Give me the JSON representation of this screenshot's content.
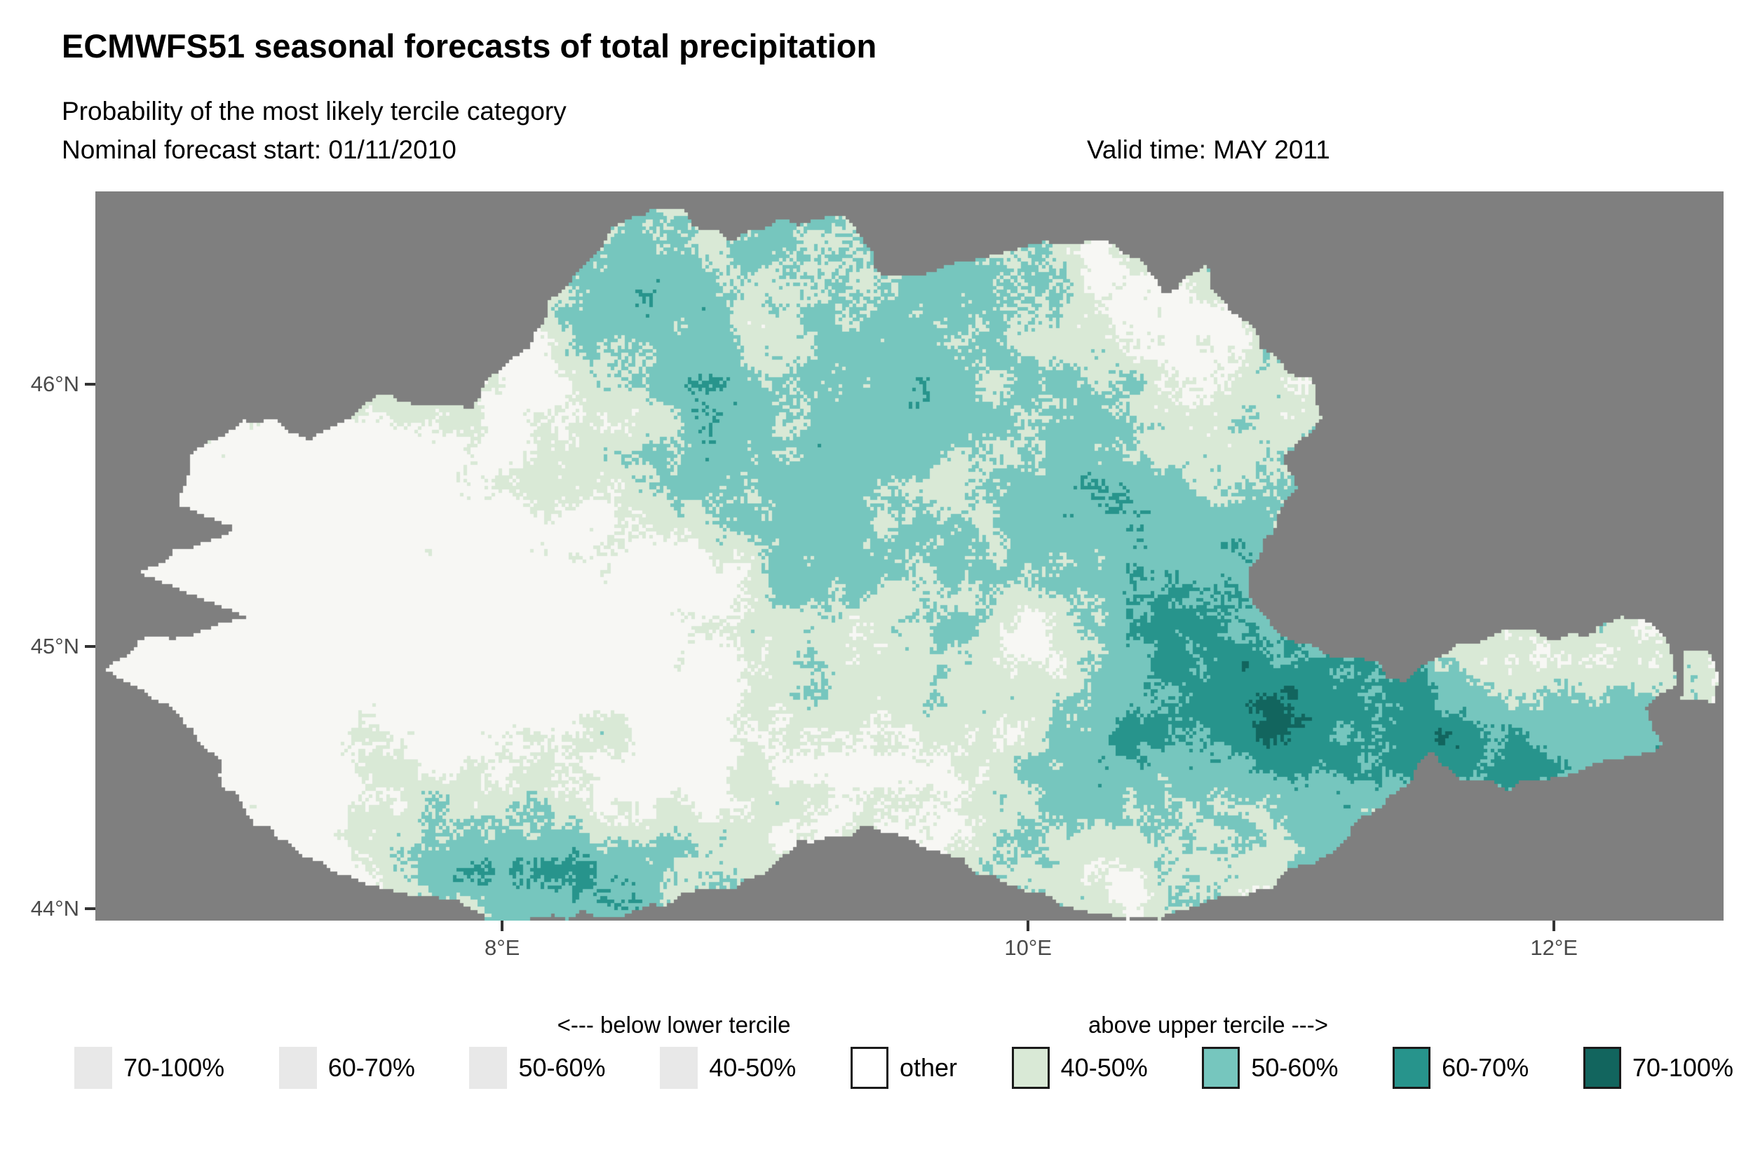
{
  "header": {
    "title": "ECMWFS51 seasonal forecasts of total precipitation",
    "subtitle": "Probability of the most likely tercile category",
    "forecast_start": "Nominal forecast start: 01/11/2010",
    "valid_time": "Valid time: MAY 2011"
  },
  "legend": {
    "below_header": "<--- below lower tercile",
    "above_header": "above upper tercile --->",
    "items": [
      {
        "label": "70-100%",
        "color": "#e8e8e8",
        "bordered": false,
        "group": "below"
      },
      {
        "label": "60-70%",
        "color": "#e8e8e8",
        "bordered": false,
        "group": "below"
      },
      {
        "label": "50-60%",
        "color": "#e8e8e8",
        "bordered": false,
        "group": "below"
      },
      {
        "label": "40-50%",
        "color": "#e8e8e8",
        "bordered": false,
        "group": "below"
      },
      {
        "label": "other",
        "color": "#ffffff",
        "bordered": true,
        "group": "other"
      },
      {
        "label": "40-50%",
        "color": "#d9e9d6",
        "bordered": true,
        "group": "above"
      },
      {
        "label": "50-60%",
        "color": "#76c6be",
        "bordered": true,
        "group": "above"
      },
      {
        "label": "60-70%",
        "color": "#27948c",
        "bordered": true,
        "group": "above"
      },
      {
        "label": "70-100%",
        "color": "#12655e",
        "bordered": true,
        "group": "above"
      }
    ]
  },
  "map_style": {
    "background": "#7f7f7f",
    "axis_text_color": "#4a4a4a",
    "tick_mark_color": "#333333"
  },
  "chart_data": {
    "type": "heatmap",
    "subtype": "categorical raster map of most-likely-tercile probability",
    "lon_range": [
      6.453,
      12.645
    ],
    "lat_range": [
      43.955,
      46.735
    ],
    "x_ticks": [
      {
        "label": "8°E",
        "value": 8
      },
      {
        "label": "10°E",
        "value": 10
      },
      {
        "label": "12°E",
        "value": 12
      }
    ],
    "y_ticks": [
      {
        "label": "46°N",
        "value": 46
      },
      {
        "label": "45°N",
        "value": 45
      },
      {
        "label": "44°N",
        "value": 44
      }
    ],
    "categories": [
      {
        "label": "other",
        "color": "#f7f7f4"
      },
      {
        "label": "40-50%",
        "color": "#d9e9d6"
      },
      {
        "label": "50-60%",
        "color": "#76c6be"
      },
      {
        "label": "60-70%",
        "color": "#27948c"
      },
      {
        "label": "70-100%",
        "color": "#12655e"
      }
    ],
    "region_outline": [
      [
        6.5,
        44.9
      ],
      [
        6.62,
        45.02
      ],
      [
        7.05,
        45.1
      ],
      [
        6.85,
        45.18
      ],
      [
        6.62,
        45.28
      ],
      [
        6.95,
        45.42
      ],
      [
        6.78,
        45.55
      ],
      [
        6.82,
        45.72
      ],
      [
        7.0,
        45.88
      ],
      [
        7.28,
        45.8
      ],
      [
        7.55,
        45.95
      ],
      [
        7.88,
        45.9
      ],
      [
        8.05,
        46.1
      ],
      [
        8.22,
        46.32
      ],
      [
        8.42,
        46.6
      ],
      [
        8.65,
        46.67
      ],
      [
        8.88,
        46.55
      ],
      [
        9.05,
        46.63
      ],
      [
        9.3,
        46.62
      ],
      [
        9.48,
        46.42
      ],
      [
        9.68,
        46.45
      ],
      [
        9.92,
        46.52
      ],
      [
        10.12,
        46.57
      ],
      [
        10.35,
        46.53
      ],
      [
        10.5,
        46.36
      ],
      [
        10.65,
        46.45
      ],
      [
        10.8,
        46.28
      ],
      [
        10.88,
        46.15
      ],
      [
        11.08,
        46.02
      ],
      [
        11.12,
        45.86
      ],
      [
        10.95,
        45.72
      ],
      [
        11.02,
        45.58
      ],
      [
        10.88,
        45.42
      ],
      [
        10.85,
        45.2
      ],
      [
        10.98,
        45.02
      ],
      [
        11.15,
        44.97
      ],
      [
        11.32,
        44.93
      ],
      [
        11.45,
        44.87
      ],
      [
        11.57,
        44.95
      ],
      [
        11.65,
        45.03
      ],
      [
        11.82,
        45.06
      ],
      [
        12.0,
        45.02
      ],
      [
        12.18,
        45.08
      ],
      [
        12.32,
        45.1
      ],
      [
        12.43,
        45.0
      ],
      [
        12.45,
        44.88
      ],
      [
        12.36,
        44.76
      ],
      [
        12.42,
        44.64
      ],
      [
        12.22,
        44.58
      ],
      [
        12.02,
        44.5
      ],
      [
        11.82,
        44.46
      ],
      [
        11.65,
        44.5
      ],
      [
        11.57,
        44.62
      ],
      [
        11.47,
        44.55
      ],
      [
        11.4,
        44.42
      ],
      [
        11.22,
        44.28
      ],
      [
        11.02,
        44.16
      ],
      [
        10.8,
        44.04
      ],
      [
        10.5,
        43.98
      ],
      [
        10.15,
        44.0
      ],
      [
        9.9,
        44.1
      ],
      [
        9.65,
        44.22
      ],
      [
        9.4,
        44.3
      ],
      [
        9.12,
        44.24
      ],
      [
        8.88,
        44.1
      ],
      [
        8.58,
        44.03
      ],
      [
        8.28,
        43.96
      ],
      [
        7.98,
        43.96
      ],
      [
        7.72,
        44.03
      ],
      [
        7.45,
        44.1
      ],
      [
        7.22,
        44.2
      ],
      [
        7.03,
        44.35
      ],
      [
        6.92,
        44.52
      ],
      [
        6.83,
        44.7
      ]
    ],
    "island_outline": [
      [
        12.5,
        44.8
      ],
      [
        12.63,
        44.8
      ],
      [
        12.63,
        44.96
      ],
      [
        12.5,
        44.96
      ]
    ]
  }
}
